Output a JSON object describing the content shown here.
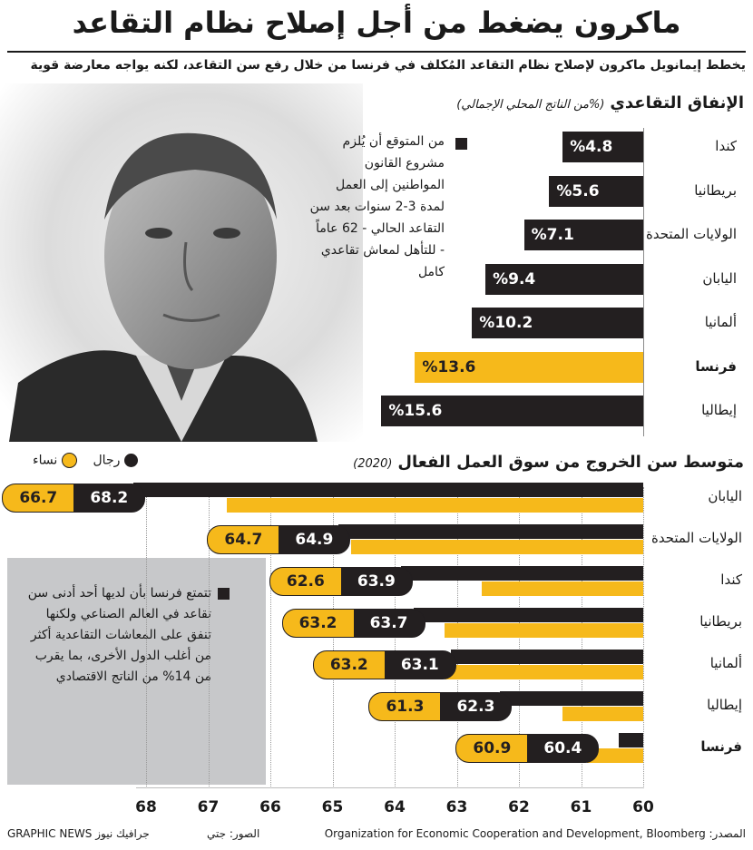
{
  "title": "ماكرون يضغط من أجل إصلاح نظام التقاعد",
  "subtitle": "يخطط إيمانويل ماكرون لإصلاح نظام التقاعد المُكلف في فرنسا من خلال رفع سن التقاعد، لكنه يواجه معارضة قوية",
  "section1": {
    "title": "الإنفاق التقاعدي",
    "subtitle": "(%من الناتج المحلي الإجمالي)"
  },
  "note1": "من المتوقع أن يُلزم مشروع القانون المواطنين إلى العمل لمدة 3-2 سنوات بعد سن التقاعد الحالي - 62 عاماً - للتأهل لمعاش تقاعدي كامل",
  "section2": {
    "title": "متوسط سن الخروج من سوق العمل الفعال",
    "subtitle": "(2020)"
  },
  "legend": {
    "men": "رجال",
    "women": "نساء"
  },
  "note2": "تتمتع فرنسا بأن لديها أحد أدنى سن تقاعد في العالم الصناعي ولكنها تنفق على المعاشات التقاعدية أكثر من أغلب الدول الأخرى، بما يقرب من 14% من الناتج الاقتصادي",
  "footer": {
    "source": "المصدر: Organization for Economic Cooperation and Development, Bloomberg",
    "credit": "الصور: جتي",
    "agency": "GRAPHIC NEWS جرافيك نيوز"
  },
  "colors": {
    "dark": "#231f20",
    "highlight": "#f6b91b",
    "panel": "#c7c8ca"
  },
  "chart_data": [
    {
      "type": "bar",
      "title": "الإنفاق التقاعدي",
      "subtitle": "(%من الناتج المحلي الإجمالي)",
      "categories": [
        "كندا",
        "بريطانيا",
        "الولايات المتحدة",
        "اليابان",
        "ألمانيا",
        "فرنسا",
        "إيطاليا"
      ],
      "values": [
        4.8,
        5.6,
        7.1,
        9.4,
        10.2,
        13.6,
        15.6
      ],
      "labels": [
        "%4.8",
        "%5.6",
        "%7.1",
        "%9.4",
        "%10.2",
        "%13.6",
        "%15.6"
      ],
      "highlight": "فرنسا"
    },
    {
      "type": "bar",
      "title": "متوسط سن الخروج من سوق العمل الفعال",
      "subtitle": "(2020)",
      "categories": [
        "اليابان",
        "الولايات المتحدة",
        "كندا",
        "بريطانيا",
        "ألمانيا",
        "إيطاليا",
        "فرنسا"
      ],
      "series": [
        {
          "name": "رجال",
          "values": [
            68.2,
            64.9,
            63.9,
            63.7,
            63.1,
            62.3,
            60.4
          ]
        },
        {
          "name": "نساء",
          "values": [
            66.7,
            64.7,
            62.6,
            63.2,
            63.2,
            61.3,
            60.9
          ]
        }
      ],
      "xlim": [
        60,
        68
      ],
      "ticks": [
        "68",
        "67",
        "66",
        "65",
        "64",
        "63",
        "62",
        "61",
        "60"
      ],
      "highlight": "فرنسا"
    }
  ]
}
